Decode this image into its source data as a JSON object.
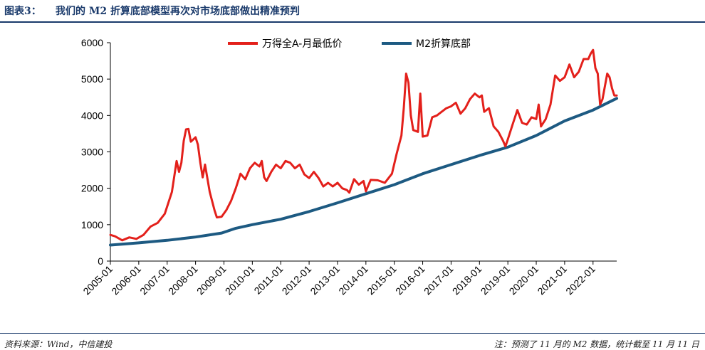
{
  "header": {
    "figure_label": "图表3：",
    "title": "我们的 M2 折算底部模型再次对市场底部做出精准预判"
  },
  "footer": {
    "source": "资料来源：Wind，中信建投",
    "note": "注：预测了 11 月的 M2 数据，统计截至 11 月 11 日"
  },
  "colors": {
    "series_a": "#e3201b",
    "series_m2": "#1d5a82",
    "header_rule": "#1a3a6b",
    "axis": "#000000"
  },
  "chart_data": {
    "type": "line",
    "title": "",
    "xlabel": "",
    "ylabel": "",
    "x_start": "2005-01",
    "x_end": "2022-11",
    "ylim": [
      0,
      6000
    ],
    "yticks": [
      "0",
      "1000",
      "2000",
      "3000",
      "4000",
      "5000",
      "6000"
    ],
    "xtick_labels": [
      "2005-01",
      "2006-01",
      "2007-01",
      "2008-01",
      "2009-01",
      "2010-01",
      "2011-01",
      "2012-01",
      "2013-01",
      "2014-01",
      "2015-01",
      "2016-01",
      "2017-01",
      "2018-01",
      "2019-01",
      "2020-01",
      "2021-01",
      "2022-01"
    ],
    "grid": false,
    "legend_position": "top",
    "series": [
      {
        "name": "万得全A-月最低价",
        "color": "#e3201b",
        "points": [
          [
            "2005-01",
            720
          ],
          [
            "2005-03",
            680
          ],
          [
            "2005-06",
            570
          ],
          [
            "2005-09",
            650
          ],
          [
            "2005-12",
            610
          ],
          [
            "2006-03",
            720
          ],
          [
            "2006-06",
            950
          ],
          [
            "2006-09",
            1050
          ],
          [
            "2006-12",
            1300
          ],
          [
            "2007-03",
            1900
          ],
          [
            "2007-05",
            2750
          ],
          [
            "2007-06",
            2450
          ],
          [
            "2007-07",
            2700
          ],
          [
            "2007-08",
            3300
          ],
          [
            "2007-09",
            3620
          ],
          [
            "2007-10",
            3630
          ],
          [
            "2007-11",
            3280
          ],
          [
            "2008-01",
            3400
          ],
          [
            "2008-02",
            3200
          ],
          [
            "2008-03",
            2700
          ],
          [
            "2008-04",
            2300
          ],
          [
            "2008-05",
            2650
          ],
          [
            "2008-07",
            1900
          ],
          [
            "2008-09",
            1400
          ],
          [
            "2008-10",
            1200
          ],
          [
            "2008-12",
            1220
          ],
          [
            "2009-02",
            1400
          ],
          [
            "2009-04",
            1650
          ],
          [
            "2009-06",
            2000
          ],
          [
            "2009-08",
            2400
          ],
          [
            "2009-10",
            2250
          ],
          [
            "2009-12",
            2550
          ],
          [
            "2010-02",
            2700
          ],
          [
            "2010-04",
            2600
          ],
          [
            "2010-05",
            2750
          ],
          [
            "2010-06",
            2300
          ],
          [
            "2010-07",
            2200
          ],
          [
            "2010-09",
            2450
          ],
          [
            "2010-11",
            2650
          ],
          [
            "2011-01",
            2550
          ],
          [
            "2011-03",
            2750
          ],
          [
            "2011-05",
            2700
          ],
          [
            "2011-07",
            2550
          ],
          [
            "2011-09",
            2650
          ],
          [
            "2011-11",
            2380
          ],
          [
            "2012-01",
            2280
          ],
          [
            "2012-03",
            2450
          ],
          [
            "2012-05",
            2280
          ],
          [
            "2012-07",
            2050
          ],
          [
            "2012-09",
            2150
          ],
          [
            "2012-11",
            2050
          ],
          [
            "2013-01",
            2150
          ],
          [
            "2013-03",
            2000
          ],
          [
            "2013-05",
            1950
          ],
          [
            "2013-06",
            1880
          ],
          [
            "2013-08",
            2250
          ],
          [
            "2013-10",
            2100
          ],
          [
            "2013-12",
            2200
          ],
          [
            "2014-01",
            1920
          ],
          [
            "2014-03",
            2230
          ],
          [
            "2014-06",
            2220
          ],
          [
            "2014-09",
            2150
          ],
          [
            "2014-12",
            2400
          ],
          [
            "2015-02",
            2950
          ],
          [
            "2015-04",
            3450
          ],
          [
            "2015-05",
            4200
          ],
          [
            "2015-06",
            5150
          ],
          [
            "2015-07",
            4900
          ],
          [
            "2015-08",
            4000
          ],
          [
            "2015-09",
            3600
          ],
          [
            "2015-11",
            3550
          ],
          [
            "2015-12",
            4600
          ],
          [
            "2016-01",
            3420
          ],
          [
            "2016-03",
            3450
          ],
          [
            "2016-05",
            3950
          ],
          [
            "2016-07",
            4000
          ],
          [
            "2016-09",
            4100
          ],
          [
            "2016-11",
            4200
          ],
          [
            "2017-01",
            4250
          ],
          [
            "2017-03",
            4350
          ],
          [
            "2017-05",
            4050
          ],
          [
            "2017-07",
            4200
          ],
          [
            "2017-09",
            4450
          ],
          [
            "2017-11",
            4600
          ],
          [
            "2018-01",
            4500
          ],
          [
            "2018-02",
            4550
          ],
          [
            "2018-03",
            4100
          ],
          [
            "2018-05",
            4200
          ],
          [
            "2018-07",
            3700
          ],
          [
            "2018-09",
            3550
          ],
          [
            "2018-11",
            3300
          ],
          [
            "2018-12",
            3150
          ],
          [
            "2019-01",
            3350
          ],
          [
            "2019-03",
            3750
          ],
          [
            "2019-05",
            4150
          ],
          [
            "2019-07",
            3800
          ],
          [
            "2019-09",
            3750
          ],
          [
            "2019-11",
            3950
          ],
          [
            "2020-01",
            3900
          ],
          [
            "2020-02",
            4300
          ],
          [
            "2020-03",
            3700
          ],
          [
            "2020-05",
            3900
          ],
          [
            "2020-07",
            4300
          ],
          [
            "2020-09",
            5100
          ],
          [
            "2020-11",
            4950
          ],
          [
            "2021-01",
            5050
          ],
          [
            "2021-03",
            5400
          ],
          [
            "2021-05",
            5050
          ],
          [
            "2021-07",
            5200
          ],
          [
            "2021-09",
            5550
          ],
          [
            "2021-11",
            5550
          ],
          [
            "2021-12",
            5700
          ],
          [
            "2022-01",
            5800
          ],
          [
            "2022-02",
            5300
          ],
          [
            "2022-03",
            5150
          ],
          [
            "2022-04",
            4300
          ],
          [
            "2022-05",
            4450
          ],
          [
            "2022-07",
            5150
          ],
          [
            "2022-08",
            5050
          ],
          [
            "2022-09",
            4750
          ],
          [
            "2022-10",
            4550
          ],
          [
            "2022-11",
            4550
          ]
        ]
      },
      {
        "name": "M2折算底部",
        "color": "#1d5a82",
        "points": [
          [
            "2005-01",
            440
          ],
          [
            "2006-01",
            500
          ],
          [
            "2007-01",
            570
          ],
          [
            "2008-01",
            660
          ],
          [
            "2008-12",
            770
          ],
          [
            "2009-06",
            900
          ],
          [
            "2010-01",
            1000
          ],
          [
            "2011-01",
            1150
          ],
          [
            "2012-01",
            1360
          ],
          [
            "2013-01",
            1600
          ],
          [
            "2014-01",
            1850
          ],
          [
            "2015-01",
            2100
          ],
          [
            "2016-01",
            2400
          ],
          [
            "2017-01",
            2650
          ],
          [
            "2018-01",
            2900
          ],
          [
            "2019-01",
            3130
          ],
          [
            "2020-01",
            3450
          ],
          [
            "2021-01",
            3850
          ],
          [
            "2022-01",
            4150
          ],
          [
            "2022-11",
            4470
          ]
        ]
      }
    ]
  }
}
